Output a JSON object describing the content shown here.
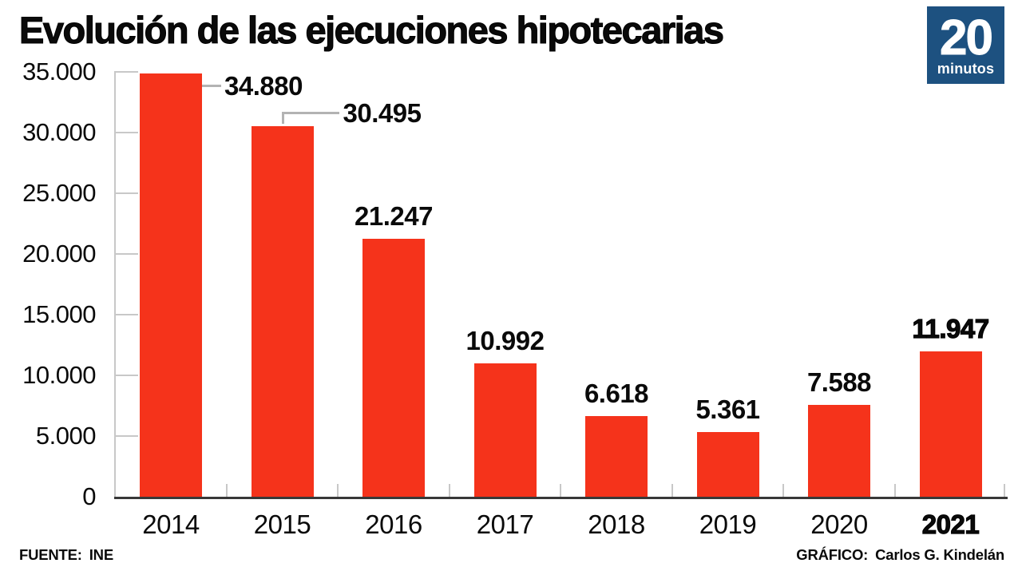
{
  "header": {
    "title": "Evolución de las ejecuciones hipotecarias",
    "logo": {
      "big": "20",
      "small": "minutos",
      "bg_color": "#1d5180",
      "text_color": "#ffffff"
    }
  },
  "chart_data": {
    "type": "bar",
    "title": "Evolución de las ejecuciones hipotecarias",
    "categories": [
      "2014",
      "2015",
      "2016",
      "2017",
      "2018",
      "2019",
      "2020",
      "2021"
    ],
    "values": [
      34880,
      30495,
      21247,
      10992,
      6618,
      5361,
      7588,
      11947
    ],
    "value_labels": [
      "34.880",
      "30.495",
      "21.247",
      "10.992",
      "6.618",
      "5.361",
      "7.588",
      "11.947"
    ],
    "label_placement": [
      "callout-right",
      "callout-elbow",
      "above",
      "above",
      "above",
      "above",
      "above",
      "above"
    ],
    "emphasized_category": "2021",
    "xlabel": "",
    "ylabel": "",
    "ylim": [
      0,
      35000
    ],
    "ytick_interval": 5000,
    "ytick_labels": [
      "0",
      "5.000",
      "10.000",
      "15.000",
      "20.000",
      "25.000",
      "30.000",
      "35.000"
    ],
    "grid": "off",
    "legend": "none",
    "bar_color": "#f5331b",
    "axis_color": "#c8c8c8",
    "baseline_color": "#383838",
    "callout_color": "#b3b3b3"
  },
  "footer": {
    "source_label": "FUENTE:",
    "source_value": "INE",
    "credit_label": "GRÁFICO:",
    "credit_value": "Carlos G. Kindelán"
  }
}
